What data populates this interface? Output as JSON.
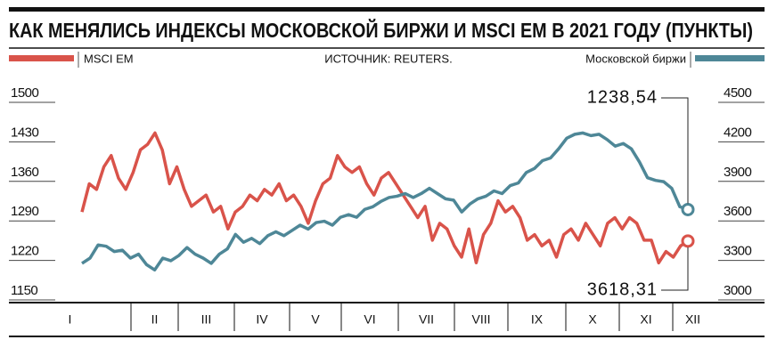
{
  "chart_data": {
    "type": "line",
    "title": "КАК МЕНЯЛИСЬ ИНДЕКСЫ МОСКОВСКОЙ БИРЖИ И MSCI EM В 2021 ГОДУ (ПУНКТЫ)",
    "source": "ИСТОЧНИК: REUTERS.",
    "x_labels": [
      "I",
      "II",
      "III",
      "IV",
      "V",
      "VI",
      "VII",
      "VIII",
      "IX",
      "X",
      "XI",
      "XII"
    ],
    "ylim": [
      1150,
      1500
    ],
    "yticks": [
      1150,
      1220,
      1290,
      1360,
      1430,
      1500
    ],
    "y2lim": [
      3000,
      4500
    ],
    "y2ticks": [
      3000,
      3300,
      3600,
      3900,
      4200,
      4500
    ],
    "annotations": [
      "1238,54",
      "3618,31"
    ],
    "series": [
      {
        "name": "MSCI EM",
        "color": "#d9534a",
        "values": [
          1290,
          1340,
          1330,
          1370,
          1390,
          1350,
          1330,
          1360,
          1400,
          1410,
          1430,
          1400,
          1340,
          1370,
          1330,
          1300,
          1310,
          1320,
          1290,
          1300,
          1260,
          1290,
          1300,
          1320,
          1310,
          1330,
          1320,
          1340,
          1310,
          1320,
          1300,
          1270,
          1310,
          1340,
          1350,
          1390,
          1370,
          1360,
          1370,
          1340,
          1320,
          1350,
          1360,
          1340,
          1320,
          1300,
          1280,
          1300,
          1240,
          1270,
          1260,
          1230,
          1210,
          1260,
          1200,
          1250,
          1270,
          1310,
          1290,
          1300,
          1280,
          1240,
          1250,
          1230,
          1240,
          1210,
          1250,
          1260,
          1240,
          1270,
          1250,
          1230,
          1270,
          1280,
          1260,
          1280,
          1270,
          1240,
          1240,
          1200,
          1220,
          1210,
          1230,
          1238.54
        ]
      },
      {
        "name": "Московской биржи",
        "color": "#4e8797",
        "axis": "y2",
        "values": [
          3210,
          3250,
          3350,
          3340,
          3300,
          3310,
          3250,
          3280,
          3200,
          3160,
          3250,
          3230,
          3270,
          3330,
          3280,
          3250,
          3210,
          3280,
          3320,
          3430,
          3370,
          3400,
          3360,
          3420,
          3450,
          3420,
          3460,
          3500,
          3470,
          3520,
          3530,
          3500,
          3560,
          3580,
          3560,
          3620,
          3640,
          3680,
          3710,
          3720,
          3740,
          3710,
          3740,
          3780,
          3740,
          3700,
          3690,
          3600,
          3660,
          3700,
          3720,
          3760,
          3740,
          3800,
          3820,
          3900,
          3930,
          3990,
          4010,
          4080,
          4160,
          4190,
          4200,
          4180,
          4190,
          4150,
          4100,
          4120,
          4080,
          3980,
          3860,
          3840,
          3830,
          3780,
          3640,
          3618.31
        ]
      }
    ]
  }
}
